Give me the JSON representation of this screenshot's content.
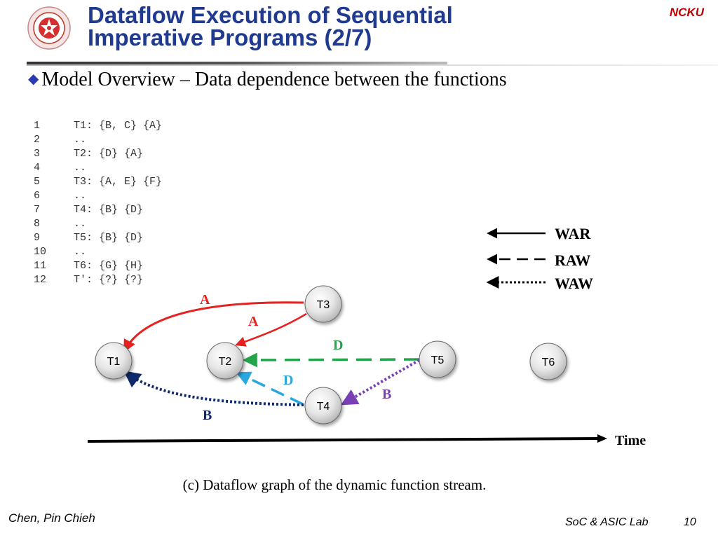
{
  "header": {
    "title_line1": "Dataflow Execution of Sequential",
    "title_line2": "Imperative Programs (2/7)",
    "org": "NCKU",
    "logo_icon": "university-seal-icon"
  },
  "bullet": {
    "text": "Model Overview – Data dependence between the functions",
    "icon": "diamond-bullet-icon"
  },
  "code": [
    {
      "ln": "1",
      "text": "T1: {B, C} {A}"
    },
    {
      "ln": "2",
      "text": ".."
    },
    {
      "ln": "3",
      "text": "T2: {D} {A}"
    },
    {
      "ln": "4",
      "text": ".."
    },
    {
      "ln": "5",
      "text": "T3: {A, E} {F}"
    },
    {
      "ln": "6",
      "text": ".."
    },
    {
      "ln": "7",
      "text": "T4: {B} {D}"
    },
    {
      "ln": "8",
      "text": ".."
    },
    {
      "ln": "9",
      "text": "T5: {B} {D}"
    },
    {
      "ln": "10",
      "text": ".."
    },
    {
      "ln": "11",
      "text": "T6: {G} {H}"
    },
    {
      "ln": "12",
      "text": "T': {?} {?}"
    }
  ],
  "diagram": {
    "nodes": {
      "t1": "T1",
      "t2": "T2",
      "t3": "T3",
      "t4": "T4",
      "t5": "T5",
      "t6": "T6"
    },
    "edges": [
      {
        "from": "T3",
        "to": "T1",
        "label": "A",
        "type": "WAR",
        "color": "#e82020"
      },
      {
        "from": "T3",
        "to": "T2",
        "label": "A",
        "type": "WAR",
        "color": "#e82020"
      },
      {
        "from": "T5",
        "to": "T2",
        "label": "D",
        "type": "RAW",
        "color": "#22a54a"
      },
      {
        "from": "T4",
        "to": "T2",
        "label": "D",
        "type": "RAW",
        "color": "#2aa7de"
      },
      {
        "from": "T4",
        "to": "T1",
        "label": "B",
        "type": "WAW",
        "color": "#0f2a6b"
      },
      {
        "from": "T5",
        "to": "T4",
        "label": "B",
        "type": "WAW",
        "color": "#7a3fb5"
      }
    ],
    "legend": [
      {
        "label": "WAR",
        "style": "solid"
      },
      {
        "label": "RAW",
        "style": "dashed"
      },
      {
        "label": "WAW",
        "style": "dotted"
      }
    ],
    "time_label": "Time"
  },
  "caption": "(c) Dataflow graph of the dynamic function stream.",
  "footer": {
    "author": "Chen, Pin  Chieh",
    "lab": "SoC & ASIC Lab",
    "page": "10"
  }
}
